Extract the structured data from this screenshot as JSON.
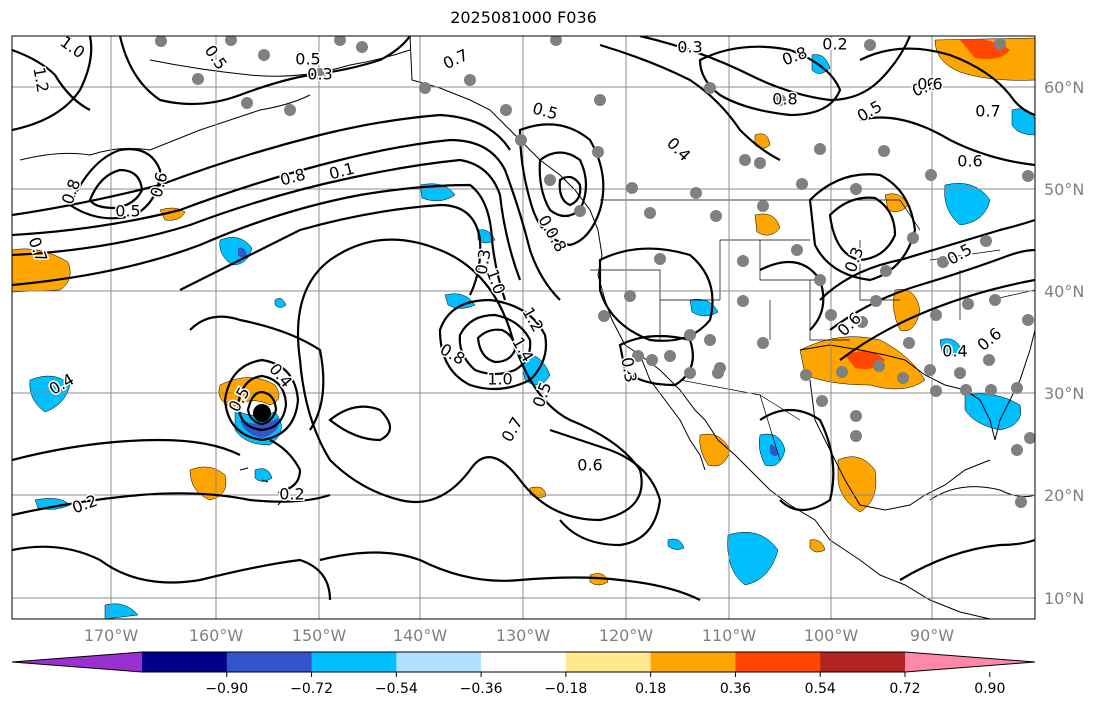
{
  "title": "2025081000 F036",
  "lat_labels": [
    "60°N",
    "50°N",
    "40°N",
    "30°N",
    "20°N",
    "10°N"
  ],
  "lon_labels": [
    "170°W",
    "160°W",
    "150°W",
    "140°W",
    "130°W",
    "120°W",
    "110°W",
    "100°W",
    "90°W"
  ],
  "colorbar": {
    "ticks": [
      "−0.90",
      "−0.72",
      "−0.54",
      "−0.36",
      "−0.18",
      "0.18",
      "0.36",
      "0.54",
      "0.72",
      "0.90"
    ],
    "colors": [
      "#9b30d0",
      "#00008b",
      "#3355cc",
      "#00bfff",
      "#b0e2ff",
      "#ffffff",
      "#ffe98c",
      "#ffa500",
      "#ff4500",
      "#b22222",
      "#ff88aa"
    ]
  },
  "contour_labels": [
    {
      "text": "1.0"
    },
    {
      "text": "1.2"
    },
    {
      "text": "0.5"
    },
    {
      "text": "0.5"
    },
    {
      "text": "0.7"
    },
    {
      "text": "0.5"
    },
    {
      "text": "0.3"
    },
    {
      "text": "0.8"
    },
    {
      "text": "0.8"
    },
    {
      "text": "0.8"
    },
    {
      "text": "0.5"
    },
    {
      "text": "0.6"
    },
    {
      "text": "0.7"
    },
    {
      "text": "0.8"
    },
    {
      "text": "0.1"
    },
    {
      "text": "1.0"
    },
    {
      "text": "0.3"
    },
    {
      "text": "0.8"
    },
    {
      "text": "1.2"
    },
    {
      "text": "1.4"
    },
    {
      "text": "1.0"
    },
    {
      "text": "0.8"
    },
    {
      "text": "0.5"
    },
    {
      "text": "0.6"
    },
    {
      "text": "0.6"
    },
    {
      "text": "0.4"
    },
    {
      "text": "0.4"
    },
    {
      "text": "0.2"
    },
    {
      "text": "0.2"
    },
    {
      "text": "0.5"
    },
    {
      "text": "0.7"
    },
    {
      "text": "0.6"
    },
    {
      "text": "0.6"
    },
    {
      "text": "0.7"
    },
    {
      "text": "0.3"
    },
    {
      "text": "0.4"
    },
    {
      "text": "0.3"
    },
    {
      "text": "0.2"
    },
    {
      "text": "0.4"
    },
    {
      "text": "0.5"
    },
    {
      "text": "0.3"
    },
    {
      "text": "0.8"
    },
    {
      "text": "0.5"
    },
    {
      "text": "0.6"
    },
    {
      "text": "0.6"
    }
  ],
  "storm_marker": "tropical cyclone center",
  "station_color": "#808080"
}
